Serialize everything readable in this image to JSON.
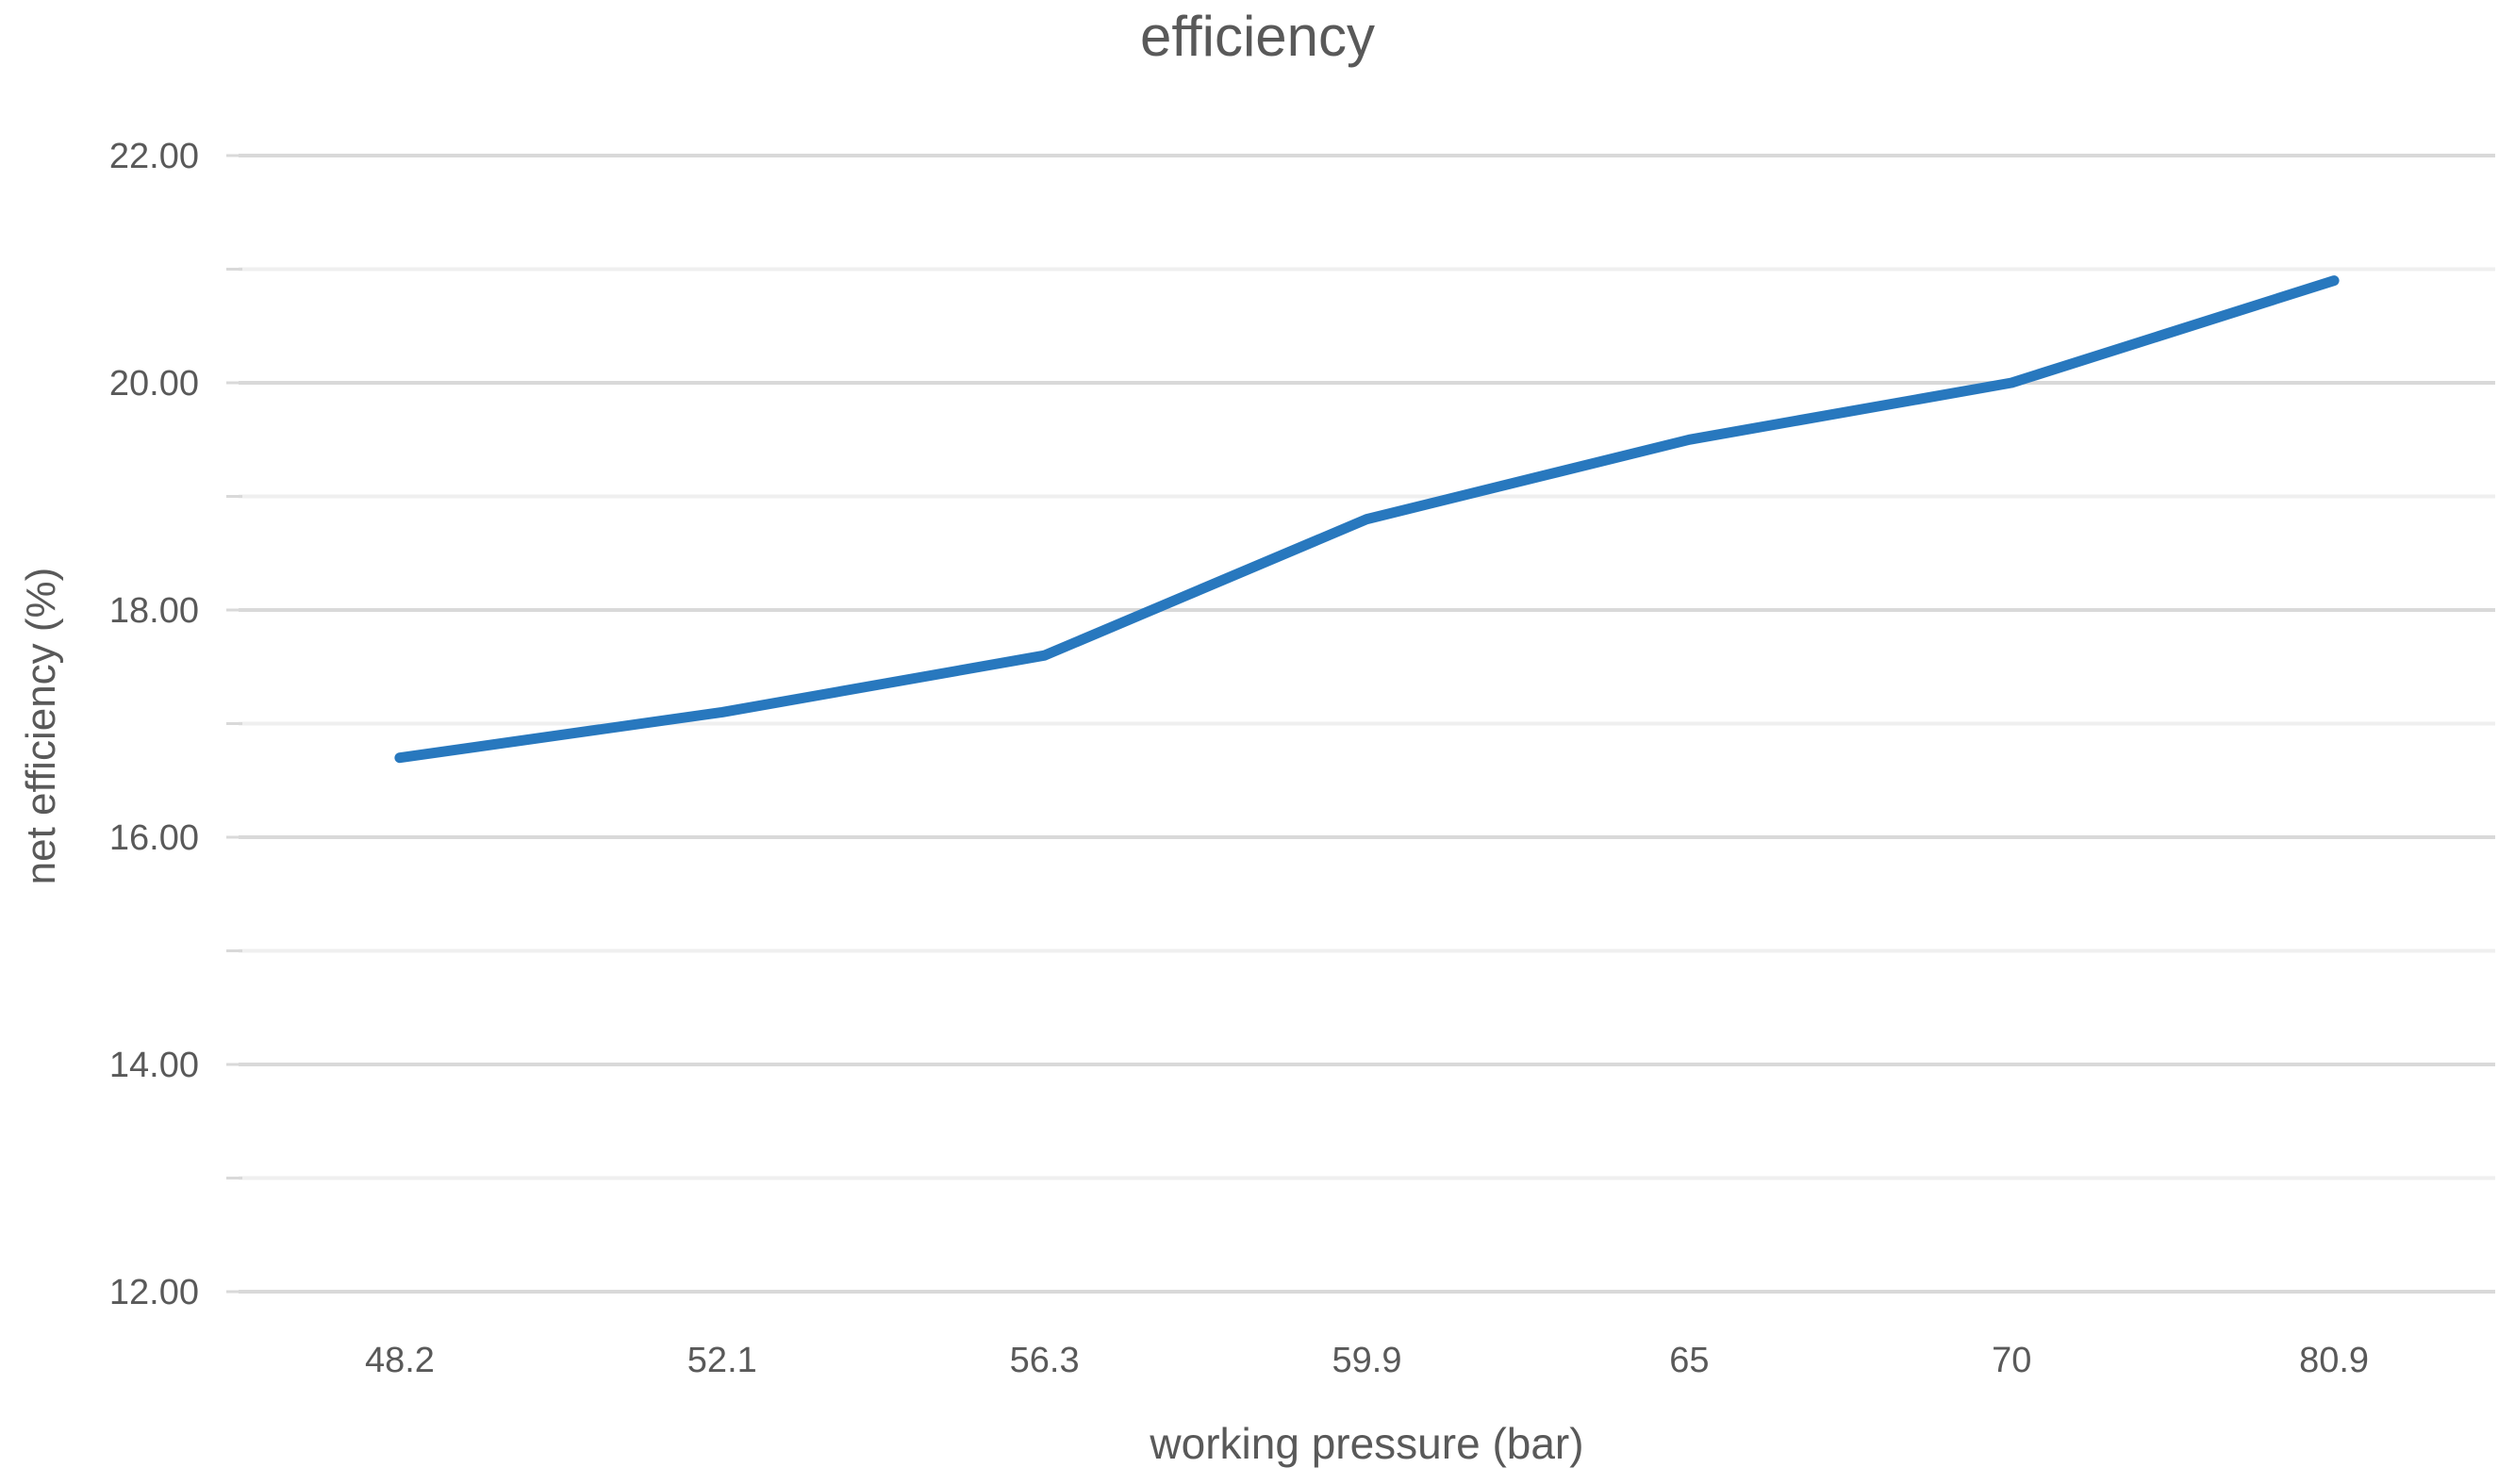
{
  "chart_data": {
    "type": "line",
    "title": "efficiency",
    "xlabel": "working pressure (bar)",
    "ylabel": "net efficiency (%)",
    "categories": [
      "48.2",
      "52.1",
      "56.3",
      "59.9",
      "65",
      "70",
      "80.9"
    ],
    "series": [
      {
        "name": "efficiency",
        "values": [
          16.7,
          17.1,
          17.6,
          18.8,
          19.5,
          20.0,
          20.9
        ]
      }
    ],
    "ylim": [
      12,
      22
    ],
    "y_major_step": 2,
    "y_minor_step": 1,
    "y_tick_labels": [
      "12.00",
      "14.00",
      "16.00",
      "18.00",
      "20.00",
      "22.00"
    ],
    "y_tick_decimals": 2,
    "grid": "horizontal, major and minor lines, no vertical grid",
    "legend": "none",
    "marker": "none",
    "colors": {
      "line": "#2878BE",
      "grid_major": "#D9D9D9",
      "grid_minor": "#EFEFEF",
      "tick_mark": "#D9D9D9",
      "text": "#595959",
      "background": "#FFFFFF"
    }
  }
}
